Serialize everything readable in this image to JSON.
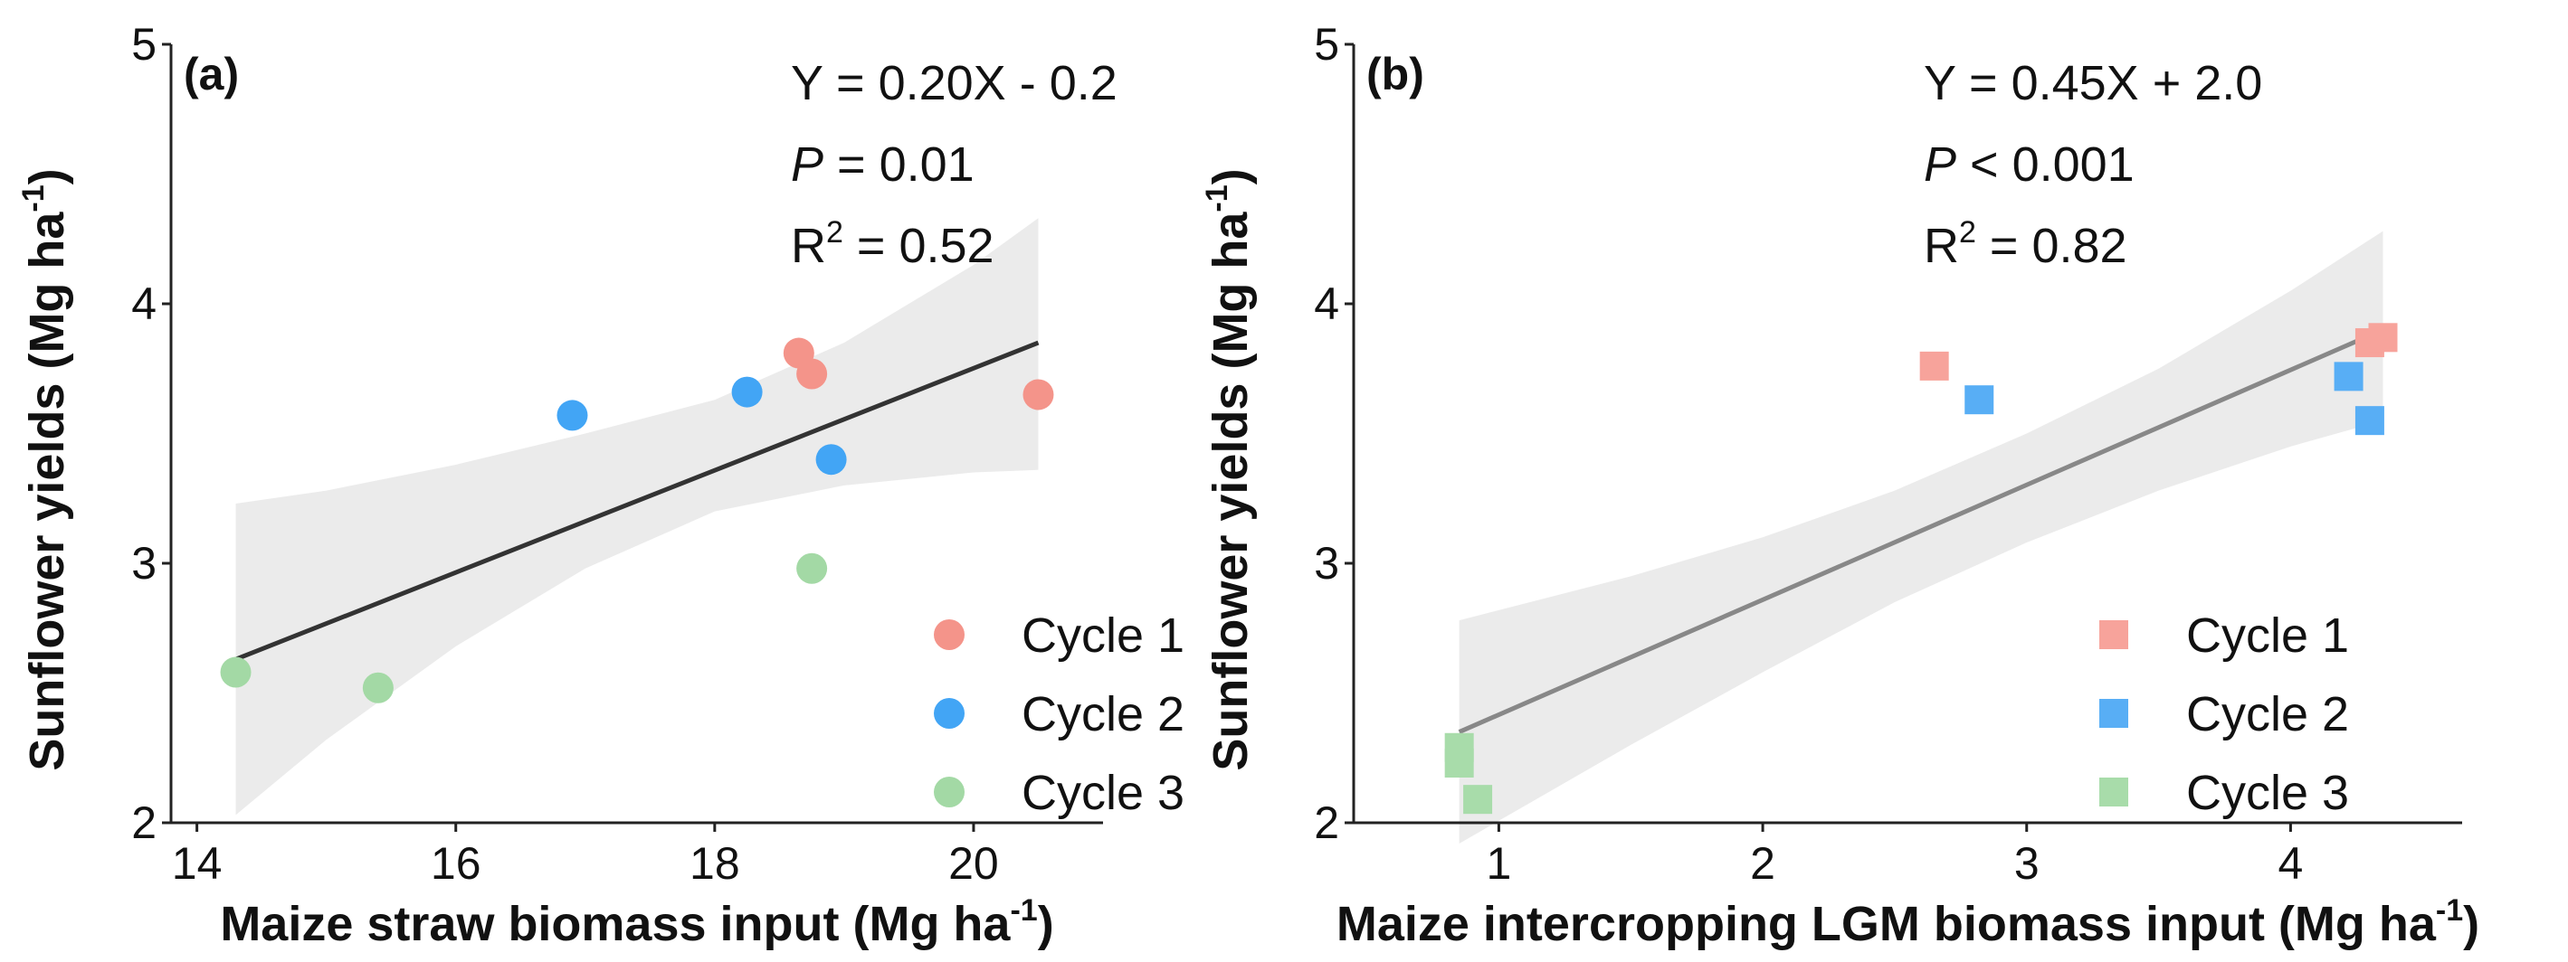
{
  "chart_data": [
    {
      "type": "scatter",
      "panel_label": "(a)",
      "xlabel": "Maize straw biomass input (Mg ha",
      "xlabel_sup": "-1",
      "ylabel": "Sunflower yields (Mg ha",
      "ylabel_sup": "-1",
      "xlim": [
        13.8,
        21.0
      ],
      "ylim": [
        2,
        5
      ],
      "xticks": [
        14,
        16,
        18,
        20
      ],
      "yticks": [
        2,
        3,
        4,
        5
      ],
      "marker": "circle",
      "annotations": {
        "equation": "Y = 0.20X - 0.2",
        "p_label": "P",
        "p_value": " = 0.01",
        "r2_label": "R",
        "r2_sup": "2",
        "r2_value": " = 0.52"
      },
      "fit": {
        "x": [
          14.3,
          20.5
        ],
        "y": [
          2.63,
          3.85
        ],
        "color": "#333333"
      },
      "ci": {
        "x": [
          14.3,
          15,
          16,
          17,
          18,
          19,
          20,
          20.5
        ],
        "upper": [
          3.23,
          3.28,
          3.38,
          3.5,
          3.63,
          3.85,
          4.15,
          4.33
        ],
        "lower": [
          2.03,
          2.32,
          2.68,
          2.98,
          3.2,
          3.3,
          3.35,
          3.36
        ]
      },
      "series": [
        {
          "name": "Cycle 1",
          "color": "#f4948a",
          "x": [
            18.65,
            18.75,
            20.5
          ],
          "y": [
            3.81,
            3.73,
            3.65
          ]
        },
        {
          "name": "Cycle 2",
          "color": "#42a5f5",
          "x": [
            16.9,
            18.25,
            18.9
          ],
          "y": [
            3.57,
            3.66,
            3.4
          ]
        },
        {
          "name": "Cycle 3",
          "color": "#a3d9a5",
          "x": [
            14.3,
            15.4,
            18.75
          ],
          "y": [
            2.58,
            2.52,
            2.98
          ]
        }
      ],
      "legend_position": "bottom-right"
    },
    {
      "type": "scatter",
      "panel_label": "(b)",
      "xlabel": "Maize intercropping LGM biomass input (Mg ha",
      "xlabel_sup": "-1",
      "ylabel": "Sunflower yields (Mg ha",
      "ylabel_sup": "-1",
      "xlim": [
        0.45,
        4.65
      ],
      "ylim": [
        2,
        5
      ],
      "xticks": [
        1,
        2,
        3,
        4
      ],
      "yticks": [
        2,
        3,
        4,
        5
      ],
      "marker": "square",
      "annotations": {
        "equation": "Y = 0.45X + 2.0",
        "p_label": "P",
        "p_value": " < 0.001",
        "r2_label": "R",
        "r2_sup": "2",
        "r2_value": " = 0.82"
      },
      "fit": {
        "x": [
          0.85,
          4.35
        ],
        "y": [
          2.35,
          3.9
        ],
        "color": "#888888"
      },
      "ci": {
        "x": [
          0.85,
          1.5,
          2.0,
          2.5,
          3.0,
          3.5,
          4.0,
          4.35
        ],
        "upper": [
          2.78,
          2.95,
          3.1,
          3.28,
          3.5,
          3.75,
          4.05,
          4.28
        ],
        "lower": [
          1.92,
          2.3,
          2.58,
          2.85,
          3.08,
          3.28,
          3.45,
          3.55
        ]
      },
      "series": [
        {
          "name": "Cycle 1",
          "color": "#f7a39b",
          "x": [
            2.65,
            4.3,
            4.35
          ],
          "y": [
            3.76,
            3.85,
            3.87
          ]
        },
        {
          "name": "Cycle 2",
          "color": "#58aef5",
          "x": [
            2.82,
            4.22,
            4.3
          ],
          "y": [
            3.63,
            3.72,
            3.55
          ]
        },
        {
          "name": "Cycle 3",
          "color": "#a8dcaa",
          "x": [
            0.85,
            0.85,
            0.92
          ],
          "y": [
            2.29,
            2.23,
            2.09
          ]
        }
      ],
      "legend_position": "bottom-right"
    }
  ]
}
